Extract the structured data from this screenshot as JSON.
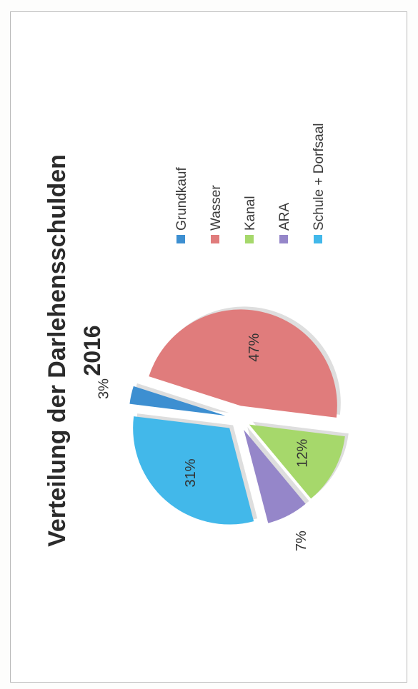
{
  "chart_data": {
    "type": "pie",
    "title": "Verteilung der Darlehensschulden",
    "subtitle": "2016",
    "categories": [
      "Grundkauf",
      "Wasser",
      "Kanal",
      "ARA",
      "Schule + Dorfsaal"
    ],
    "values": [
      3,
      47,
      12,
      7,
      31
    ],
    "data_labels": [
      "3%",
      "47%",
      "12%",
      "7%",
      "31%"
    ],
    "colors": [
      "#3d8fd1",
      "#e07c7c",
      "#a6d86b",
      "#9586c9",
      "#42b8ea"
    ],
    "exploded": true,
    "legend": "right"
  }
}
